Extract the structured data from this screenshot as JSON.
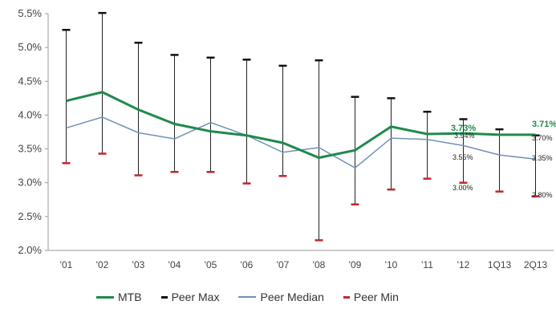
{
  "chart_data": {
    "type": "line",
    "categories": [
      "'01",
      "'02",
      "'03",
      "'04",
      "'05",
      "'06",
      "'07",
      "'08",
      "'09",
      "'10",
      "'11",
      "'12",
      "1Q13",
      "2Q13"
    ],
    "ylim": [
      0.02,
      0.055
    ],
    "yticks": [
      "2.0%",
      "2.5%",
      "3.0%",
      "3.5%",
      "4.0%",
      "4.5%",
      "5.0%",
      "5.5%"
    ],
    "series": [
      {
        "name": "MTB",
        "color": "#1f8a4c",
        "values": [
          0.0421,
          0.0434,
          0.0408,
          0.0387,
          0.0376,
          0.037,
          0.0359,
          0.0337,
          0.0348,
          0.0383,
          0.0372,
          0.0373,
          0.0371,
          0.0371
        ]
      },
      {
        "name": "Peer Max",
        "color": "#111111",
        "values": [
          0.0526,
          0.0551,
          0.0507,
          0.0489,
          0.0485,
          0.0482,
          0.0473,
          0.0481,
          0.0427,
          0.0425,
          0.0405,
          0.0394,
          0.0379,
          0.037
        ]
      },
      {
        "name": "Peer Median",
        "color": "#6f92b8",
        "values": [
          0.0381,
          0.0397,
          0.0374,
          0.0365,
          0.0389,
          0.037,
          0.0345,
          0.0352,
          0.0322,
          0.0366,
          0.0364,
          0.0355,
          0.0341,
          0.0335
        ]
      },
      {
        "name": "Peer Min",
        "color": "#c0272d",
        "values": [
          0.0329,
          0.0343,
          0.0311,
          0.0316,
          0.0316,
          0.0299,
          0.031,
          0.0215,
          0.0268,
          0.029,
          0.0306,
          0.03,
          0.0287,
          0.028
        ]
      }
    ],
    "data_labels": {
      "mtb_12": "3.73%",
      "mtb_2q13": "3.71%",
      "max_12": "3.94%",
      "max_2q13": "3.70%",
      "median_12": "3.55%",
      "median_2q13": "3.35%",
      "min_12": "3.00%",
      "min_2q13": "2.80%"
    },
    "legend_position": "bottom"
  }
}
